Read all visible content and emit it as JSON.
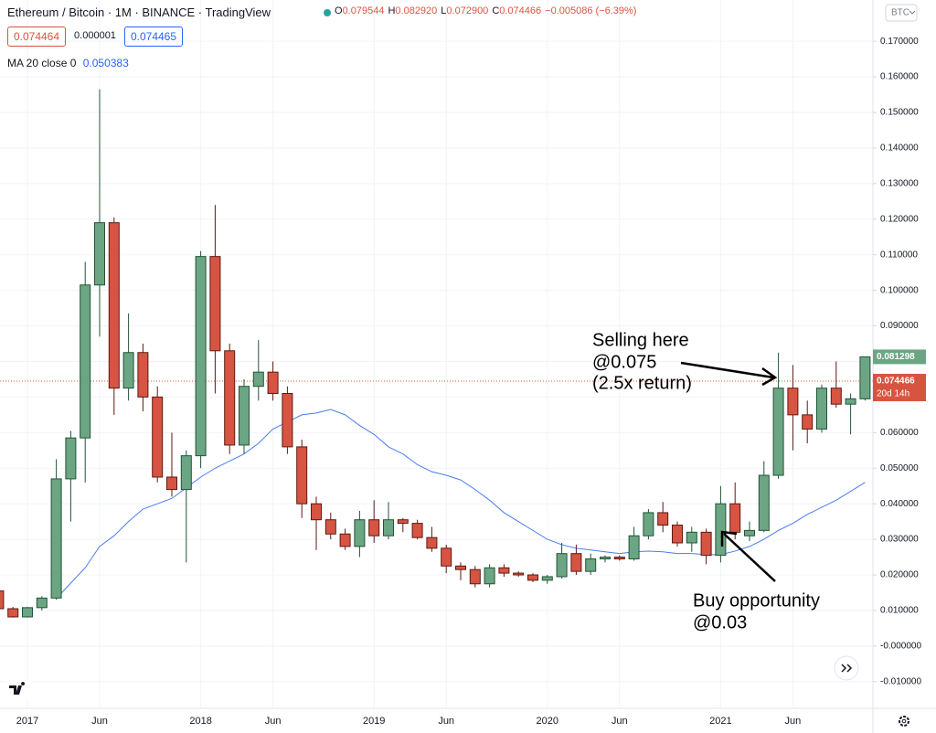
{
  "chart_data": {
    "type": "candlestick",
    "title": "Ethereum / Bitcoin · 1M · BINANCE · TradingView",
    "x": [
      "2016-11",
      "2016-12",
      "2017-01",
      "2017-02",
      "2017-03",
      "2017-04",
      "2017-05",
      "2017-06",
      "2017-07",
      "2017-08",
      "2017-09",
      "2017-10",
      "2017-11",
      "2017-12",
      "2018-01",
      "2018-02",
      "2018-03",
      "2018-04",
      "2018-05",
      "2018-06",
      "2018-07",
      "2018-08",
      "2018-09",
      "2018-10",
      "2018-11",
      "2018-12",
      "2019-01",
      "2019-02",
      "2019-03",
      "2019-04",
      "2019-05",
      "2019-06",
      "2019-07",
      "2019-08",
      "2019-09",
      "2019-10",
      "2019-11",
      "2019-12",
      "2020-01",
      "2020-02",
      "2020-03",
      "2020-04",
      "2020-05",
      "2020-06",
      "2020-07",
      "2020-08",
      "2020-09",
      "2020-10",
      "2020-11",
      "2020-12",
      "2021-01",
      "2021-02",
      "2021-03",
      "2021-04",
      "2021-05",
      "2021-06",
      "2021-07",
      "2021-08",
      "2021-09",
      "2021-10",
      "2021-11"
    ],
    "open": [
      0.0155,
      0.0105,
      0.0082,
      0.0108,
      0.0135,
      0.047,
      0.0585,
      0.1015,
      0.119,
      0.0725,
      0.0825,
      0.07,
      0.0475,
      0.044,
      0.0535,
      0.1095,
      0.083,
      0.0565,
      0.073,
      0.077,
      0.071,
      0.056,
      0.04,
      0.0355,
      0.0315,
      0.028,
      0.0355,
      0.031,
      0.0355,
      0.0345,
      0.0305,
      0.0275,
      0.0225,
      0.0215,
      0.0175,
      0.022,
      0.0205,
      0.02,
      0.0185,
      0.0195,
      0.026,
      0.021,
      0.0245,
      0.025,
      0.0245,
      0.031,
      0.0375,
      0.034,
      0.029,
      0.032,
      0.0255,
      0.04,
      0.031,
      0.0325,
      0.048,
      0.0725,
      0.065,
      0.061,
      0.0725,
      0.068,
      0.0695
    ],
    "high": [
      0.016,
      0.011,
      0.011,
      0.014,
      0.0525,
      0.0605,
      0.108,
      0.1565,
      0.1205,
      0.0935,
      0.085,
      0.073,
      0.06,
      0.055,
      0.111,
      0.124,
      0.085,
      0.075,
      0.086,
      0.08,
      0.073,
      0.058,
      0.042,
      0.0375,
      0.033,
      0.038,
      0.041,
      0.0405,
      0.036,
      0.0355,
      0.0335,
      0.0285,
      0.0235,
      0.0225,
      0.023,
      0.023,
      0.021,
      0.0205,
      0.02,
      0.029,
      0.0285,
      0.026,
      0.0255,
      0.0255,
      0.0335,
      0.0385,
      0.0405,
      0.035,
      0.0335,
      0.033,
      0.045,
      0.046,
      0.035,
      0.052,
      0.0825,
      0.079,
      0.069,
      0.0735,
      0.08,
      0.071,
      0.0813
    ],
    "low": [
      0.01,
      0.008,
      0.008,
      0.01,
      0.013,
      0.035,
      0.046,
      0.087,
      0.065,
      0.069,
      0.066,
      0.046,
      0.042,
      0.0235,
      0.05,
      0.071,
      0.054,
      0.054,
      0.069,
      0.069,
      0.054,
      0.036,
      0.027,
      0.03,
      0.027,
      0.025,
      0.029,
      0.03,
      0.032,
      0.03,
      0.0265,
      0.0205,
      0.0185,
      0.0165,
      0.0165,
      0.0195,
      0.0195,
      0.018,
      0.0175,
      0.019,
      0.02,
      0.02,
      0.0235,
      0.024,
      0.024,
      0.03,
      0.032,
      0.028,
      0.0265,
      0.023,
      0.0235,
      0.03,
      0.0295,
      0.032,
      0.047,
      0.055,
      0.057,
      0.06,
      0.067,
      0.0595,
      0.069
    ],
    "close": [
      0.0105,
      0.0082,
      0.0108,
      0.0135,
      0.047,
      0.0585,
      0.1015,
      0.119,
      0.0725,
      0.0825,
      0.07,
      0.0475,
      0.044,
      0.0535,
      0.1095,
      0.083,
      0.0565,
      0.073,
      0.077,
      0.071,
      0.056,
      0.04,
      0.0355,
      0.0315,
      0.028,
      0.0355,
      0.031,
      0.0355,
      0.0345,
      0.0305,
      0.0275,
      0.0225,
      0.0215,
      0.0175,
      0.022,
      0.0205,
      0.02,
      0.0185,
      0.0195,
      0.026,
      0.021,
      0.0245,
      0.025,
      0.0245,
      0.031,
      0.0375,
      0.034,
      0.029,
      0.032,
      0.0255,
      0.04,
      0.032,
      0.0325,
      0.048,
      0.0725,
      0.065,
      0.061,
      0.0725,
      0.068,
      0.0695,
      0.0813
    ],
    "up_color": "#6ba583",
    "up_border": "#225437",
    "down_color": "#d75442",
    "down_border": "#5b1a13",
    "series": [
      {
        "name": "MA 20 close 0",
        "color": "#4a7cf0",
        "values": [
          null,
          null,
          null,
          null,
          0.0134,
          0.0177,
          0.022,
          0.028,
          0.031,
          0.035,
          0.0385,
          0.04,
          0.0415,
          0.0445,
          0.0475,
          0.05,
          0.052,
          0.054,
          0.057,
          0.061,
          0.063,
          0.065,
          0.0655,
          0.0665,
          0.065,
          0.062,
          0.0595,
          0.056,
          0.054,
          0.051,
          0.049,
          0.048,
          0.0467,
          0.044,
          0.041,
          0.0375,
          0.035,
          0.0325,
          0.03,
          0.0285,
          0.0275,
          0.027,
          0.0265,
          0.026,
          0.0265,
          0.0267,
          0.0265,
          0.026,
          0.026,
          0.0257,
          0.0257,
          0.0267,
          0.028,
          0.03,
          0.0325,
          0.0345,
          0.037,
          0.039,
          0.041,
          0.0435,
          0.046
        ]
      }
    ],
    "ylim": [
      -0.0175,
      0.1816
    ],
    "yticks": [
      {
        "value": -0.01,
        "label": "-0.010000"
      },
      {
        "value": 0,
        "label": "-0.000000"
      },
      {
        "value": 0.01,
        "label": "0.010000"
      },
      {
        "value": 0.02,
        "label": "0.020000"
      },
      {
        "value": 0.03,
        "label": "0.030000"
      },
      {
        "value": 0.04,
        "label": "0.040000"
      },
      {
        "value": 0.05,
        "label": "0.050000"
      },
      {
        "value": 0.06,
        "label": "0.060000"
      },
      {
        "value": 0.07,
        "label": "0.070000"
      },
      {
        "value": 0.08,
        "label": "0.080000"
      },
      {
        "value": 0.09,
        "label": "0.090000"
      },
      {
        "value": 0.1,
        "label": "0.100000"
      },
      {
        "value": 0.11,
        "label": "0.110000"
      },
      {
        "value": 0.12,
        "label": "0.120000"
      },
      {
        "value": 0.13,
        "label": "0.130000"
      },
      {
        "value": 0.14,
        "label": "0.140000"
      },
      {
        "value": 0.15,
        "label": "0.150000"
      },
      {
        "value": 0.16,
        "label": "0.160000"
      },
      {
        "value": 0.17,
        "label": "0.170000"
      }
    ],
    "xticks": [
      {
        "value": "2017-01",
        "label": "2017"
      },
      {
        "value": "2017-06",
        "label": "Jun"
      },
      {
        "value": "2018-01",
        "label": "2018"
      },
      {
        "value": "2018-06",
        "label": "Jun"
      },
      {
        "value": "2019-01",
        "label": "2019"
      },
      {
        "value": "2019-06",
        "label": "Jun"
      },
      {
        "value": "2020-01",
        "label": "2020"
      },
      {
        "value": "2020-06",
        "label": "Jun"
      },
      {
        "value": "2021-01",
        "label": "2021"
      },
      {
        "value": "2021-06",
        "label": "Jun"
      }
    ],
    "grid": true,
    "price_marker": {
      "value": 0.081298,
      "label": "0.081298",
      "color": "#6ba583"
    },
    "current_price": {
      "value": 0.074466,
      "label": "0.074466",
      "countdown": "20d 14h",
      "color": "#d75442"
    },
    "currency": "BTC",
    "annotations": {
      "sell": [
        "Selling here",
        "@0.075",
        "(2.5x return)"
      ],
      "buy": [
        "Buy opportunity",
        "@0.03"
      ]
    }
  },
  "header": {
    "ohlc": [
      {
        "key": "O",
        "value": "0.079544"
      },
      {
        "key": "H",
        "value": "0.082920"
      },
      {
        "key": "L",
        "value": "0.072900"
      },
      {
        "key": "C",
        "value": "0.074466"
      }
    ],
    "change": "−0.005086 (−6.39%)",
    "sell_price": "0.074464",
    "spread": "0.000001",
    "buy_price": "0.074465",
    "ma_value": "0.050383"
  }
}
